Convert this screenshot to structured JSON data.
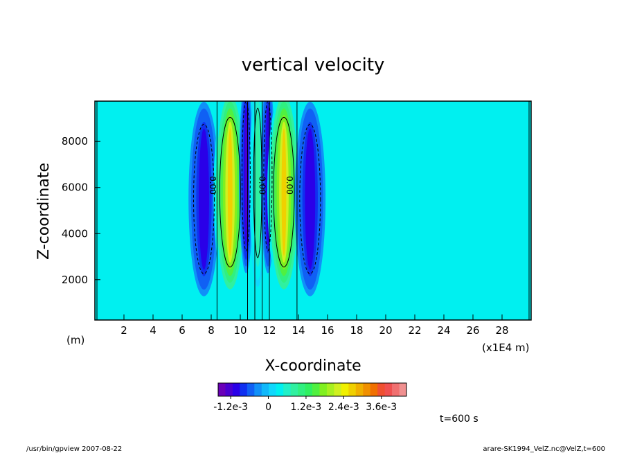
{
  "chart_data": {
    "type": "heatmap",
    "title": "vertical velocity",
    "xlabel": "X-coordinate",
    "ylabel": "Z-coordinate",
    "x_unit": "(m)",
    "x_multiplier": "(x1E4 m)",
    "x_ticks": [
      "2",
      "4",
      "6",
      "8",
      "10",
      "12",
      "14",
      "16",
      "18",
      "20",
      "22",
      "24",
      "26",
      "28"
    ],
    "y_ticks": [
      "2000",
      "4000",
      "6000",
      "8000"
    ],
    "xlim": [
      0,
      30
    ],
    "ylim": [
      250,
      9750
    ],
    "colorbar": {
      "labels": [
        "-1.2e-3",
        "0",
        "1.2e-3",
        "2.4e-3",
        "3.6e-3"
      ],
      "colors": [
        "#6a00b8",
        "#4a00d0",
        "#2a00e8",
        "#1030f0",
        "#1060f4",
        "#1090f8",
        "#10b8fa",
        "#10d8fc",
        "#00f0f0",
        "#20f0c8",
        "#30f0a0",
        "#30f080",
        "#30f060",
        "#50f040",
        "#80f020",
        "#a8f020",
        "#d0f020",
        "#f0f000",
        "#f0d000",
        "#f0b000",
        "#f09000",
        "#f07000",
        "#f05030",
        "#f05050",
        "#f07070",
        "#f09090"
      ],
      "range": [
        -0.0016,
        0.0044
      ]
    },
    "field_features": [
      {
        "x": 7.5,
        "z": 5500,
        "value": -0.0011
      },
      {
        "x": 9.3,
        "z": 5800,
        "value": 0.0026
      },
      {
        "x": 10.4,
        "z": 6500,
        "value": -0.0012
      },
      {
        "x": 11.2,
        "z": 6200,
        "value": 0.0009
      },
      {
        "x": 11.9,
        "z": 6500,
        "value": -0.0011
      },
      {
        "x": 13.0,
        "z": 5800,
        "value": 0.0026
      },
      {
        "x": 14.8,
        "z": 5500,
        "value": -0.0011
      }
    ],
    "contour_label": "0.00",
    "time_label": "t=600 s"
  },
  "footer": {
    "left": "/usr/bin/gpview  2007-08-22",
    "right": "arare-SK1994_VelZ.nc@VelZ,t=600"
  }
}
